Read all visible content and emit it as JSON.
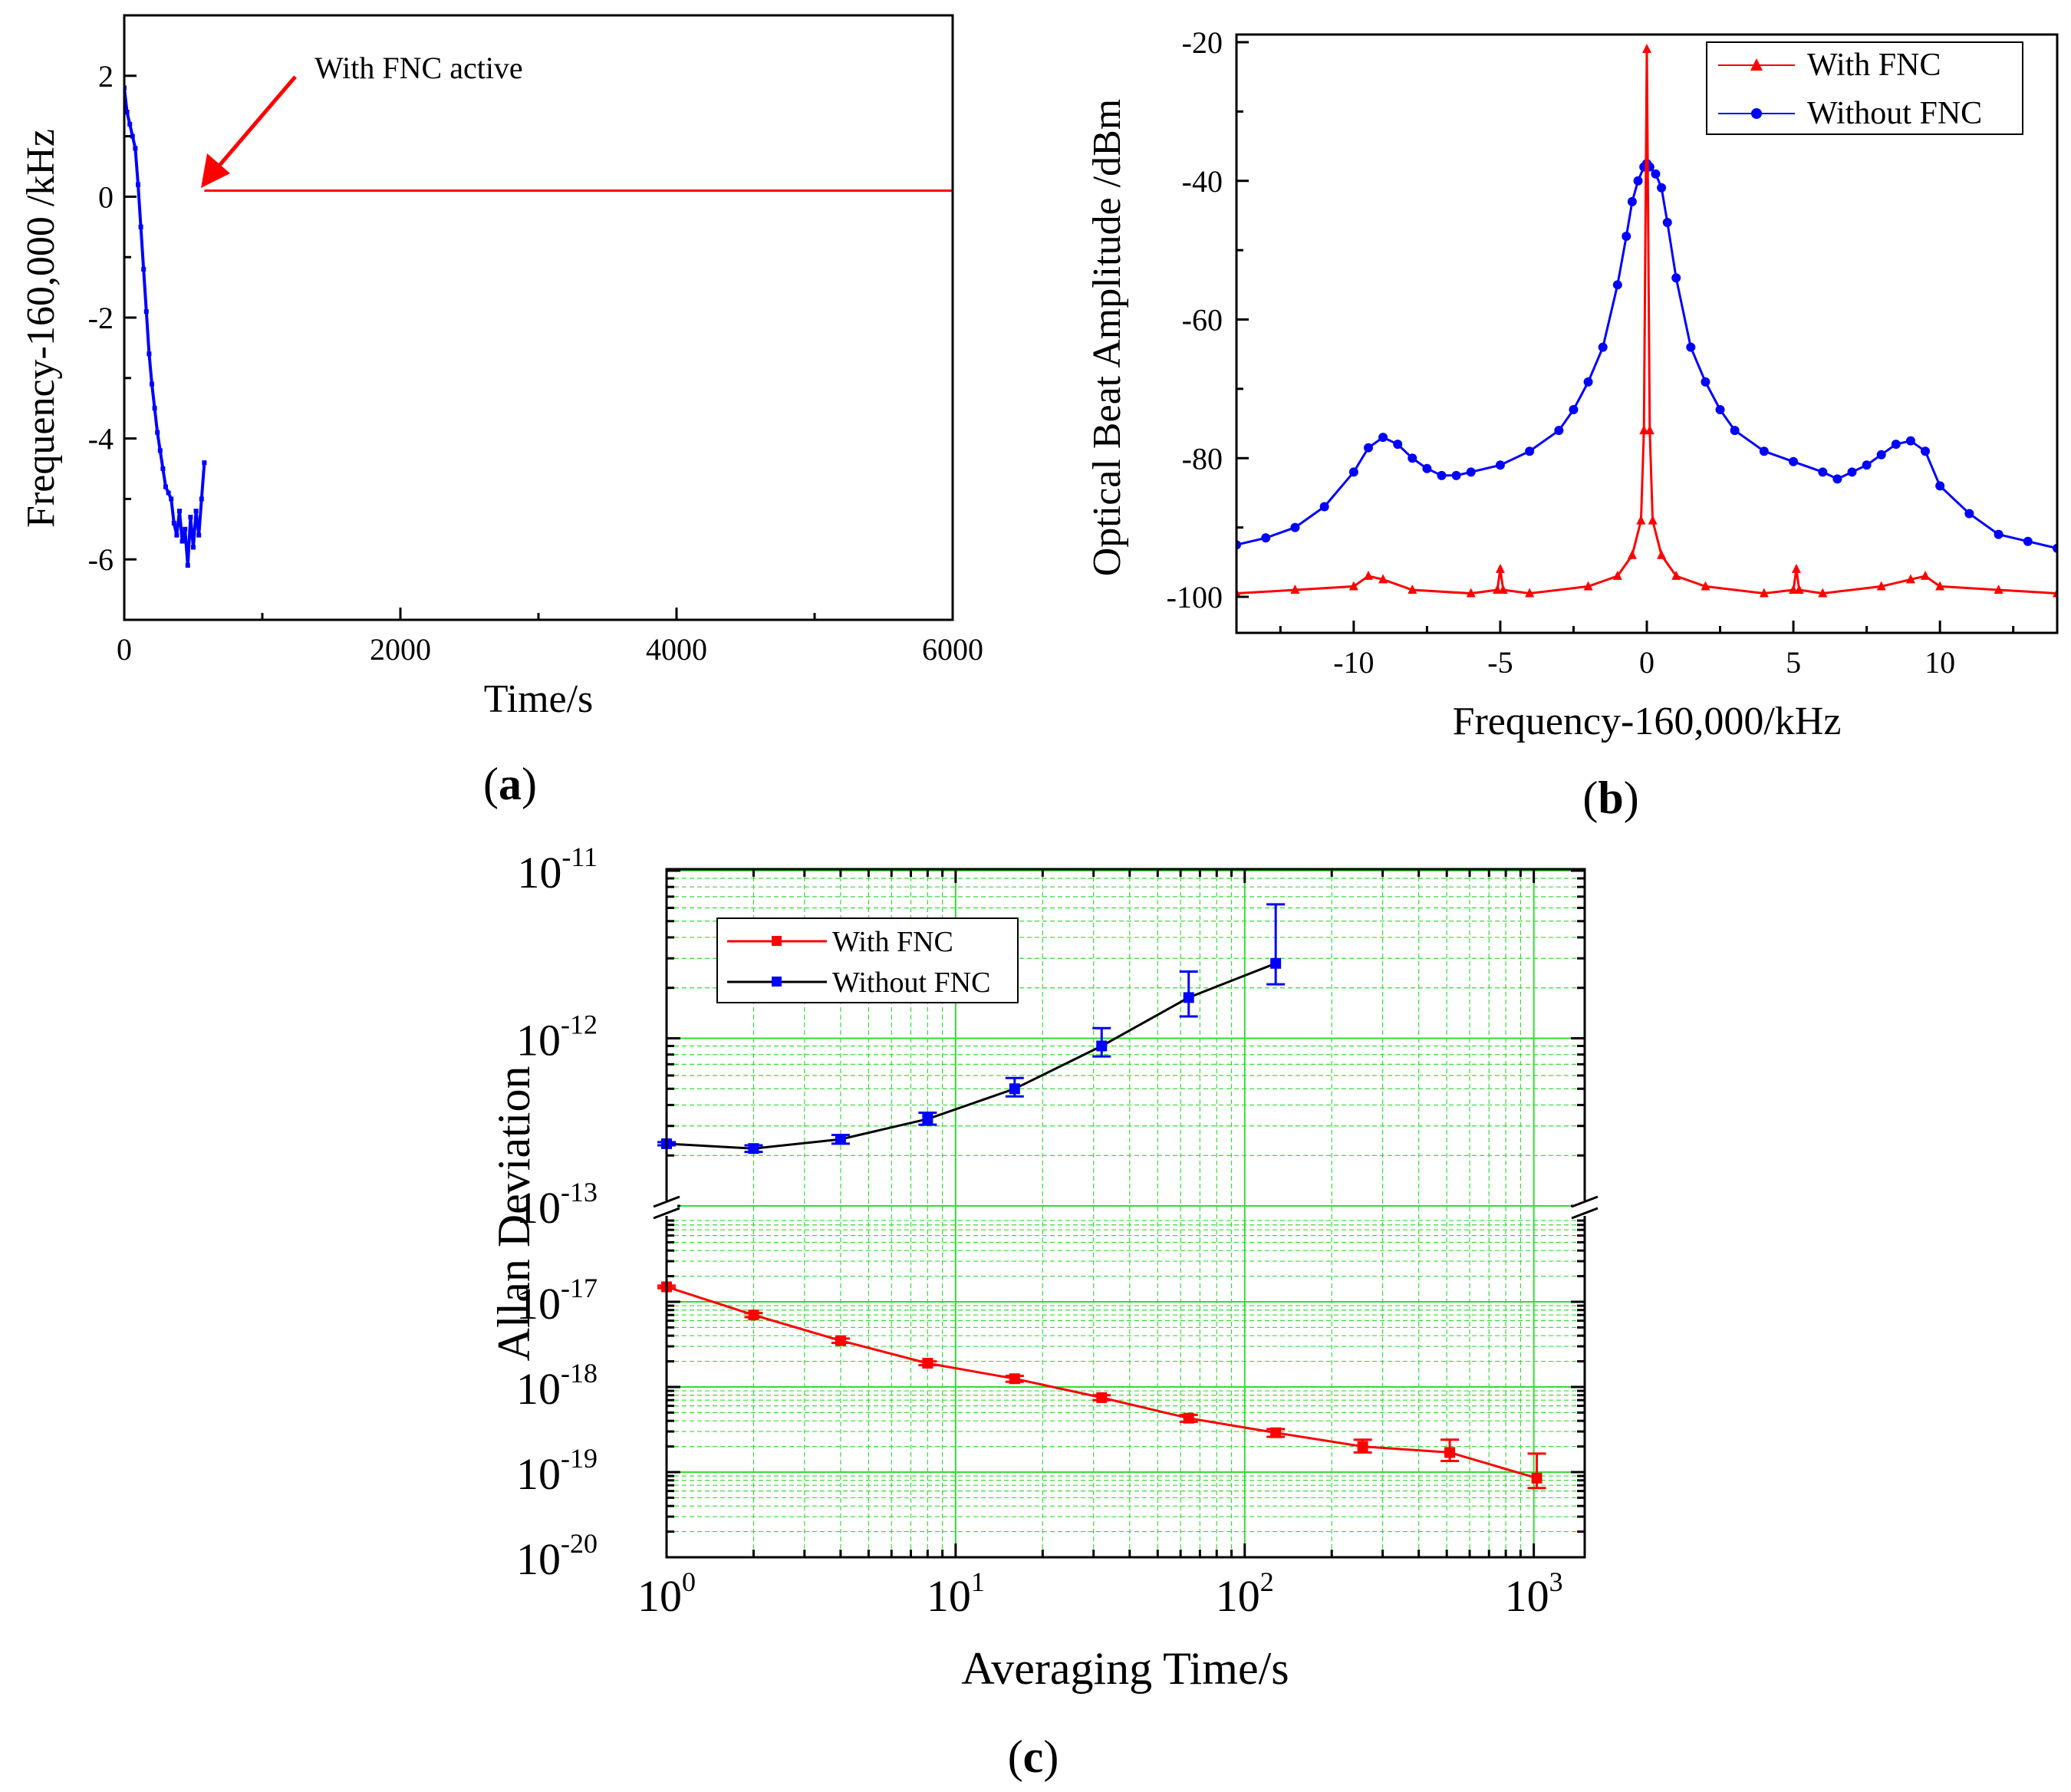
{
  "colors": {
    "red": "#ff0000",
    "blue": "#0000ff",
    "black": "#000000",
    "grid": "#33dd33"
  },
  "panel_labels": {
    "a": "a",
    "b": "b",
    "c": "c"
  },
  "chart_data": [
    {
      "id": "a",
      "type": "line",
      "title": "",
      "xlabel": "Time/s",
      "ylabel": "Frequency-160,000 /kHz",
      "xlim": [
        0,
        6000
      ],
      "ylim": [
        -7,
        3
      ],
      "xticks": [
        "0",
        "2000",
        "4000",
        "6000"
      ],
      "yticks": [
        "2",
        "0",
        "-2",
        "-4",
        "-6"
      ],
      "annotation": "With FNC active",
      "series": [
        {
          "name": "Without FNC",
          "color": "#0000ff",
          "x": [
            0,
            20,
            40,
            60,
            80,
            100,
            120,
            140,
            160,
            180,
            200,
            220,
            240,
            260,
            280,
            300,
            320,
            340,
            360,
            380,
            400,
            420,
            440,
            460,
            480,
            500,
            520,
            540,
            560,
            580
          ],
          "y": [
            1.8,
            1.4,
            1.2,
            1.0,
            0.8,
            0.2,
            -0.5,
            -1.2,
            -1.9,
            -2.6,
            -3.1,
            -3.5,
            -3.9,
            -4.2,
            -4.5,
            -4.8,
            -4.9,
            -5.0,
            -5.4,
            -5.6,
            -5.2,
            -5.7,
            -5.5,
            -6.1,
            -5.3,
            -5.8,
            -5.2,
            -5.6,
            -5.0,
            -4.4
          ]
        },
        {
          "name": "With FNC",
          "color": "#ff0000",
          "x": [
            580,
            6000
          ],
          "y": [
            0.1,
            0.1
          ]
        }
      ]
    },
    {
      "id": "b",
      "type": "line",
      "title": "",
      "xlabel": "Frequency-160,000/kHz",
      "ylabel": "Optical Beat Amplitude /dBm",
      "xlim": [
        -14,
        14
      ],
      "ylim": [
        -105,
        -20
      ],
      "xticks": [
        "-10",
        "-5",
        "0",
        "5",
        "10"
      ],
      "yticks": [
        "-20",
        "-40",
        "-60",
        "-80",
        "-100"
      ],
      "legend": [
        "With FNC",
        "Without FNC"
      ],
      "series": [
        {
          "name": "Without FNC",
          "color": "#0000ff",
          "x": [
            -14,
            -13,
            -12,
            -11,
            -10,
            -9.5,
            -9,
            -8.5,
            -8,
            -7.5,
            -7,
            -6.5,
            -6,
            -5,
            -4,
            -3,
            -2.5,
            -2,
            -1.5,
            -1,
            -0.7,
            -0.5,
            -0.3,
            -0.1,
            0,
            0.1,
            0.3,
            0.5,
            0.7,
            1,
            1.5,
            2,
            2.5,
            3,
            4,
            5,
            6,
            6.5,
            7,
            7.5,
            8,
            8.5,
            9,
            9.5,
            10,
            11,
            12,
            13,
            14
          ],
          "y": [
            -92.5,
            -91.5,
            -90,
            -87,
            -82,
            -78.5,
            -77,
            -78,
            -80,
            -81.5,
            -82.5,
            -82.5,
            -82,
            -81,
            -79,
            -76,
            -73,
            -69,
            -64,
            -55,
            -48,
            -43,
            -40,
            -38,
            -37.5,
            -38,
            -39,
            -41,
            -46,
            -54,
            -64,
            -69,
            -73,
            -76,
            -79,
            -80.5,
            -82,
            -83,
            -82,
            -81,
            -79.5,
            -78,
            -77.5,
            -79,
            -84,
            -88,
            -91,
            -92,
            -93
          ]
        },
        {
          "name": "With FNC",
          "color": "#ff0000",
          "x": [
            -14,
            -12,
            -10,
            -9.5,
            -9,
            -8,
            -6,
            -5.1,
            -5,
            -4.9,
            -4,
            -2,
            -1,
            -0.5,
            -0.2,
            -0.1,
            0,
            0.1,
            0.2,
            0.5,
            1,
            2,
            4,
            5,
            5.1,
            5.2,
            6,
            8,
            9,
            9.5,
            10,
            12,
            14
          ],
          "y": [
            -99.5,
            -99,
            -98.5,
            -97,
            -97.5,
            -99,
            -99.5,
            -99,
            -96,
            -99,
            -99.5,
            -98.5,
            -97,
            -94,
            -89,
            -76,
            -21,
            -76,
            -89,
            -94,
            -97,
            -98.5,
            -99.5,
            -99,
            -96,
            -99,
            -99.5,
            -98.5,
            -97.5,
            -97,
            -98.5,
            -99,
            -99.5
          ]
        }
      ]
    },
    {
      "id": "c",
      "type": "line",
      "title": "",
      "xlabel": "Averaging Time/s",
      "ylabel": "Allan Deviation",
      "xscale": "log",
      "yscale": "log (broken axis)",
      "xlim": [
        1,
        1500
      ],
      "ylim_upper": [
        1e-13,
        1e-11
      ],
      "ylim_lower": [
        1e-20,
        4e-17
      ],
      "xticks": [
        {
          "base": "10",
          "exp": "0"
        },
        {
          "base": "10",
          "exp": "1"
        },
        {
          "base": "10",
          "exp": "2"
        },
        {
          "base": "10",
          "exp": "3"
        }
      ],
      "yticks": [
        {
          "base": "10",
          "exp": "-11"
        },
        {
          "base": "10",
          "exp": "-12"
        },
        {
          "base": "10",
          "exp": "-13"
        },
        {
          "base": "10",
          "exp": "-17"
        },
        {
          "base": "10",
          "exp": "-18"
        },
        {
          "base": "10",
          "exp": "-19"
        },
        {
          "base": "10",
          "exp": "-20"
        }
      ],
      "legend": [
        "With FNC",
        "Without FNC"
      ],
      "series": [
        {
          "name": "Without FNC",
          "color": "#0000ff",
          "line_color": "#000000",
          "x": [
            1,
            2,
            4,
            8,
            16,
            32,
            64,
            128
          ],
          "y": [
            2.35e-13,
            2.2e-13,
            2.5e-13,
            3.3e-13,
            5e-13,
            9e-13,
            1.75e-12,
            2.8e-12
          ],
          "err_low": [
            2.3e-13,
            2.1e-13,
            2.35e-13,
            3.05e-13,
            4.5e-13,
            7.8e-13,
            1.35e-12,
            2.1e-12
          ],
          "err_high": [
            2.4e-13,
            2.3e-13,
            2.65e-13,
            3.6e-13,
            5.8e-13,
            1.15e-12,
            2.5e-12,
            6.3e-12
          ]
        },
        {
          "name": "With FNC",
          "color": "#ff0000",
          "line_color": "#ff0000",
          "x": [
            1,
            2,
            4,
            8,
            16,
            32,
            64,
            128,
            256,
            512,
            1024
          ],
          "y": [
            1.5e-17,
            7e-18,
            3.5e-18,
            1.9e-18,
            1.25e-18,
            7.5e-19,
            4.3e-19,
            2.9e-19,
            2e-19,
            1.7e-19,
            8.5e-20
          ],
          "err_low": [
            1.45e-17,
            6.6e-18,
            3.3e-18,
            1.8e-18,
            1.15e-18,
            7e-19,
            3.9e-19,
            2.6e-19,
            1.7e-19,
            1.35e-19,
            6.5e-20
          ],
          "err_high": [
            1.55e-17,
            7.4e-18,
            3.7e-18,
            2e-18,
            1.35e-18,
            8e-19,
            4.7e-19,
            3.2e-19,
            2.4e-19,
            2.4e-19,
            1.65e-19
          ]
        }
      ]
    }
  ]
}
